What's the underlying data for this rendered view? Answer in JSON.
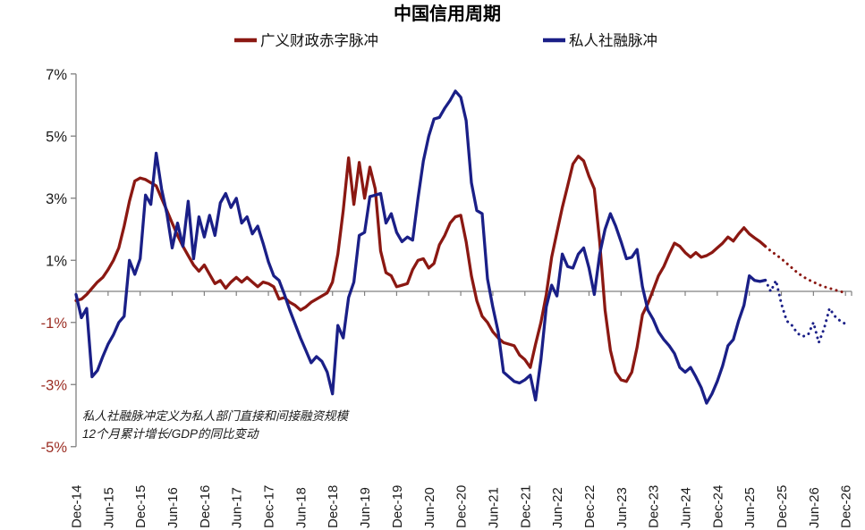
{
  "chart_data": {
    "type": "line",
    "title": "中国信用周期",
    "footnote_lines": [
      "私人社融脉冲定义为私人部门直接和间接融资规模",
      "12个月累计增长/GDP的同比变动"
    ],
    "x_count": 145,
    "x_tick_every": 6,
    "x_tick_labels": [
      "Dec-14",
      "Jun-15",
      "Dec-15",
      "Jun-16",
      "Dec-16",
      "Jun-17",
      "Dec-17",
      "Jun-18",
      "Dec-18",
      "Jun-19",
      "Dec-19",
      "Jun-20",
      "Dec-20",
      "Jun-21",
      "Dec-21",
      "Jun-22",
      "Dec-22",
      "Jun-23",
      "Dec-23",
      "Jun-24",
      "Dec-24",
      "Jun-25",
      "Dec-25",
      "Jun-26",
      "Dec-26"
    ],
    "ylim": [
      -5,
      7
    ],
    "y_ticks": [
      {
        "label": "7%",
        "value": 7
      },
      {
        "label": "5%",
        "value": 5
      },
      {
        "label": "3%",
        "value": 3
      },
      {
        "label": "1%",
        "value": 1
      },
      {
        "label": "-1%",
        "value": -1
      },
      {
        "label": "-3%",
        "value": -3
      },
      {
        "label": "-5%",
        "value": -5
      }
    ],
    "zero_line": true,
    "legend_position": "top",
    "grid": false,
    "forecast_style": "dotted",
    "colors": {
      "fiscal_red": "#8B1812",
      "private_blue": "#1A1F87",
      "negative_tick_label": "#9B2D23",
      "tick_label": "#1A1A1A",
      "axis": "#808080"
    },
    "series": [
      {
        "name": "广义财政赤字脉冲",
        "color": "#8B1812",
        "solid_until_index": 129,
        "values": [
          -0.3,
          -0.25,
          -0.1,
          0.1,
          0.3,
          0.45,
          0.7,
          1.0,
          1.4,
          2.1,
          2.9,
          3.55,
          3.65,
          3.6,
          3.5,
          3.4,
          3.0,
          2.6,
          2.2,
          1.8,
          1.45,
          1.15,
          0.85,
          0.65,
          0.85,
          0.55,
          0.25,
          0.35,
          0.1,
          0.3,
          0.45,
          0.3,
          0.45,
          0.3,
          0.15,
          0.3,
          0.25,
          0.15,
          -0.25,
          -0.2,
          -0.35,
          -0.45,
          -0.6,
          -0.5,
          -0.35,
          -0.25,
          -0.15,
          -0.05,
          0.3,
          1.2,
          2.6,
          4.3,
          2.8,
          4.15,
          3.0,
          4.0,
          3.3,
          1.3,
          0.6,
          0.5,
          0.15,
          0.2,
          0.25,
          0.7,
          1.0,
          1.05,
          0.75,
          0.9,
          1.5,
          1.8,
          2.2,
          2.4,
          2.45,
          1.6,
          0.5,
          -0.3,
          -0.8,
          -1.0,
          -1.3,
          -1.5,
          -1.65,
          -1.7,
          -1.75,
          -2.05,
          -2.2,
          -2.45,
          -1.7,
          -1.0,
          -0.1,
          1.1,
          1.9,
          2.7,
          3.4,
          4.1,
          4.35,
          4.2,
          3.7,
          3.3,
          1.6,
          -0.6,
          -1.9,
          -2.6,
          -2.85,
          -2.9,
          -2.6,
          -1.8,
          -0.75,
          -0.4,
          0.05,
          0.5,
          0.8,
          1.2,
          1.55,
          1.45,
          1.25,
          1.1,
          1.25,
          1.1,
          1.15,
          1.25,
          1.4,
          1.55,
          1.75,
          1.62,
          1.85,
          2.05,
          1.85,
          1.72,
          1.6,
          1.45,
          1.3,
          1.18,
          1.05,
          0.9,
          0.75,
          0.6,
          0.48,
          0.38,
          0.3,
          0.22,
          0.15,
          0.1,
          0.05,
          0.0,
          -0.05
        ]
      },
      {
        "name": "私人社融脉冲",
        "color": "#1A1F87",
        "solid_until_index": 129,
        "values": [
          -0.1,
          -0.85,
          -0.55,
          -2.75,
          -2.55,
          -2.1,
          -1.7,
          -1.4,
          -1.0,
          -0.8,
          1.0,
          0.55,
          1.05,
          3.1,
          2.8,
          4.45,
          3.3,
          2.5,
          1.4,
          2.2,
          1.45,
          2.9,
          1.05,
          2.4,
          1.75,
          2.45,
          1.8,
          2.85,
          3.15,
          2.7,
          3.0,
          2.2,
          2.4,
          1.85,
          2.1,
          1.55,
          0.95,
          0.5,
          0.35,
          -0.1,
          -0.6,
          -1.05,
          -1.5,
          -1.9,
          -2.3,
          -2.1,
          -2.25,
          -2.6,
          -3.3,
          -1.1,
          -1.5,
          -0.2,
          0.3,
          1.8,
          1.9,
          3.05,
          3.1,
          3.15,
          2.2,
          2.5,
          1.9,
          1.6,
          1.75,
          1.65,
          3.0,
          4.2,
          5.0,
          5.55,
          5.6,
          5.9,
          6.15,
          6.45,
          6.25,
          5.5,
          3.5,
          2.6,
          2.5,
          0.4,
          -0.5,
          -1.3,
          -2.6,
          -2.75,
          -2.9,
          -2.95,
          -2.85,
          -2.7,
          -3.5,
          -2.2,
          -0.5,
          0.2,
          -0.15,
          1.2,
          0.8,
          0.75,
          1.2,
          1.4,
          0.75,
          -0.1,
          1.2,
          2.0,
          2.5,
          2.1,
          1.6,
          1.05,
          1.1,
          1.35,
          0.15,
          -0.6,
          -0.9,
          -1.3,
          -1.55,
          -1.75,
          -2.0,
          -2.45,
          -2.6,
          -2.45,
          -2.75,
          -3.1,
          -3.6,
          -3.3,
          -2.9,
          -2.4,
          -1.75,
          -1.55,
          -0.95,
          -0.45,
          0.5,
          0.35,
          0.32,
          0.36,
          0.0,
          0.35,
          -0.4,
          -0.95,
          -1.1,
          -1.35,
          -1.45,
          -1.4,
          -1.0,
          -1.65,
          -1.2,
          -0.55,
          -0.8,
          -0.95,
          -1.05
        ]
      }
    ]
  }
}
